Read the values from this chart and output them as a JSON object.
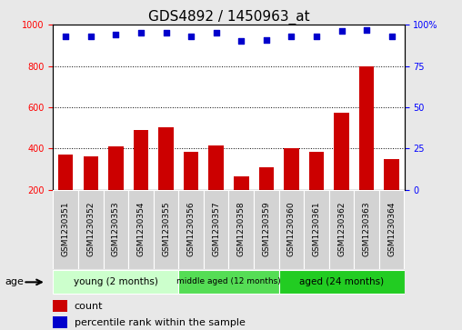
{
  "title": "GDS4892 / 1450963_at",
  "samples": [
    "GSM1230351",
    "GSM1230352",
    "GSM1230353",
    "GSM1230354",
    "GSM1230355",
    "GSM1230356",
    "GSM1230357",
    "GSM1230358",
    "GSM1230359",
    "GSM1230360",
    "GSM1230361",
    "GSM1230362",
    "GSM1230363",
    "GSM1230364"
  ],
  "counts": [
    370,
    360,
    410,
    490,
    505,
    385,
    415,
    265,
    310,
    400,
    385,
    575,
    800,
    350
  ],
  "percentile_ranks": [
    93,
    93,
    94,
    95,
    95,
    93,
    95,
    90,
    91,
    93,
    93,
    96,
    97,
    93
  ],
  "groups": [
    {
      "label": "young (2 months)",
      "start": 0,
      "end": 4,
      "color": "#ccffcc"
    },
    {
      "label": "middle aged (12 months)",
      "start": 5,
      "end": 8,
      "color": "#55dd55"
    },
    {
      "label": "aged (24 months)",
      "start": 9,
      "end": 13,
      "color": "#22cc22"
    }
  ],
  "ylim_left": [
    200,
    1000
  ],
  "ylim_right": [
    0,
    100
  ],
  "yticks_left": [
    200,
    400,
    600,
    800,
    1000
  ],
  "yticks_right": [
    0,
    25,
    50,
    75,
    100
  ],
  "bar_color": "#cc0000",
  "dot_color": "#0000cc",
  "background_color": "#e8e8e8",
  "plot_bg": "#ffffff",
  "xticklabel_bg": "#d8d8d8",
  "title_fontsize": 11,
  "tick_fontsize": 7,
  "label_fontsize": 8
}
